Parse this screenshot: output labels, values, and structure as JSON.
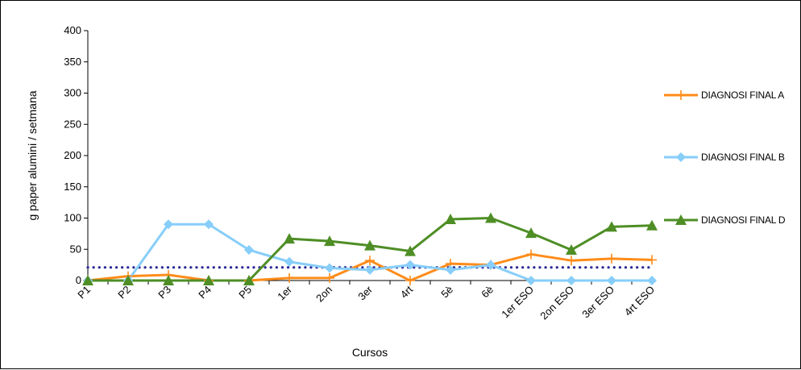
{
  "chart_data": {
    "type": "line",
    "xlabel": "Cursos",
    "ylabel": "g paper alumini / setmana",
    "ylim": [
      0,
      400
    ],
    "yticks": [
      0,
      50,
      100,
      150,
      200,
      250,
      300,
      350,
      400
    ],
    "grid": false,
    "legend_position": "right",
    "categories": [
      "P1",
      "P2",
      "P3",
      "P4",
      "P5",
      "1er",
      "2on",
      "3er",
      "4rt",
      "5è",
      "6è",
      "1er ESO",
      "2on ESO",
      "3er ESO",
      "4rt ESO"
    ],
    "series": [
      {
        "name": "DIAGNOSI FINAL A",
        "color": "#FF8C1A",
        "marker": "plus",
        "values": [
          0,
          7,
          9,
          0,
          0,
          4,
          4,
          32,
          0,
          27,
          25,
          42,
          32,
          35,
          33
        ]
      },
      {
        "name": "DIAGNOSI FINAL B",
        "color": "#87CEFA",
        "marker": "diamond",
        "values": [
          0,
          0,
          90,
          90,
          49,
          30,
          20,
          17,
          25,
          17,
          25,
          0,
          0,
          0,
          0
        ]
      },
      {
        "name": "DIAGNOSI FINAL D",
        "color": "#4E8E25",
        "marker": "triangle",
        "values": [
          0,
          0,
          0,
          0,
          0,
          67,
          63,
          56,
          47,
          98,
          100,
          76,
          49,
          86,
          88
        ]
      }
    ],
    "reference_line": {
      "color": "#2E2E9A",
      "style": "dotted",
      "value": 21
    }
  }
}
